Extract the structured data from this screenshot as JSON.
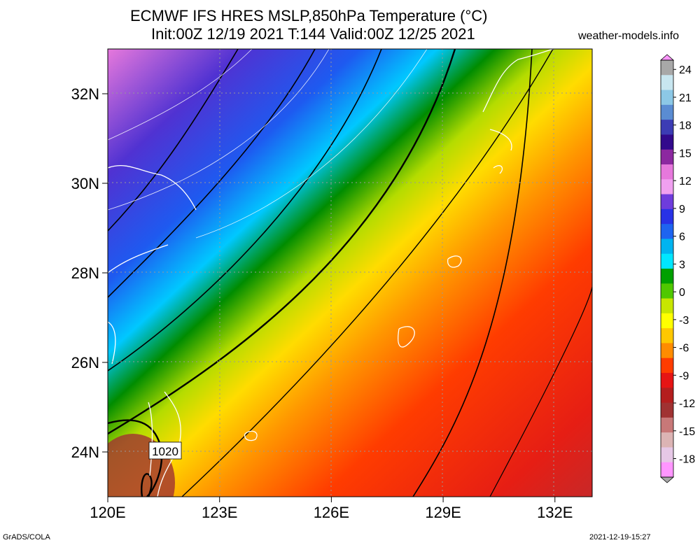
{
  "title_line1": "ECMWF IFS HRES MSLP,850hPa Temperature (°C)",
  "title_line2": "Init:00Z 12/19 2021 T:144 Valid:00Z 12/25 2021",
  "site": "weather-models.info",
  "footer_left": "GrADS/COLA",
  "footer_right": "2021-12-19-15:27",
  "isobar_label": "1020",
  "axes": {
    "lon_labels": [
      "120E",
      "123E",
      "126E",
      "129E",
      "132E"
    ],
    "lon_values": [
      120,
      123,
      126,
      129,
      132
    ],
    "lat_labels": [
      "24N",
      "26N",
      "28N",
      "30N",
      "32N"
    ],
    "lat_values": [
      24,
      26,
      28,
      30,
      32
    ],
    "lon_range": [
      120,
      133
    ],
    "lat_range": [
      23,
      33
    ]
  },
  "colorbar": {
    "labels": [
      "24",
      "21",
      "18",
      "15",
      "12",
      "9",
      "6",
      "3",
      "0",
      "-3",
      "-6",
      "-9",
      "-12",
      "-15",
      "-18"
    ],
    "values": [
      24,
      21,
      18,
      15,
      12,
      9,
      6,
      3,
      0,
      -3,
      -6,
      -9,
      -12,
      -15,
      -18
    ],
    "range": [
      -20,
      25
    ],
    "colors": [
      "#a8a8a8",
      "#c8e6f0",
      "#8cc8e6",
      "#5a8cd2",
      "#3c3cb4",
      "#320a8c",
      "#8c28a0",
      "#e678dc",
      "#f0a0f0",
      "#6e3cdc",
      "#2832e6",
      "#1e64f0",
      "#00b4f0",
      "#00e6ff",
      "#00a000",
      "#50c800",
      "#c8e600",
      "#ffff00",
      "#ffc800",
      "#ff8c00",
      "#ff3c00",
      "#e61414",
      "#b41e1e",
      "#a03232",
      "#c87878",
      "#dcb4b4",
      "#e6c8e6",
      "#ff96ff"
    ]
  },
  "temperature_gradient": [
    "#e678dc",
    "#4a28c8",
    "#1e50f0",
    "#00c8ff",
    "#00a000",
    "#d2e600",
    "#ffd200",
    "#ff7800",
    "#ff2800",
    "#c82020"
  ]
}
